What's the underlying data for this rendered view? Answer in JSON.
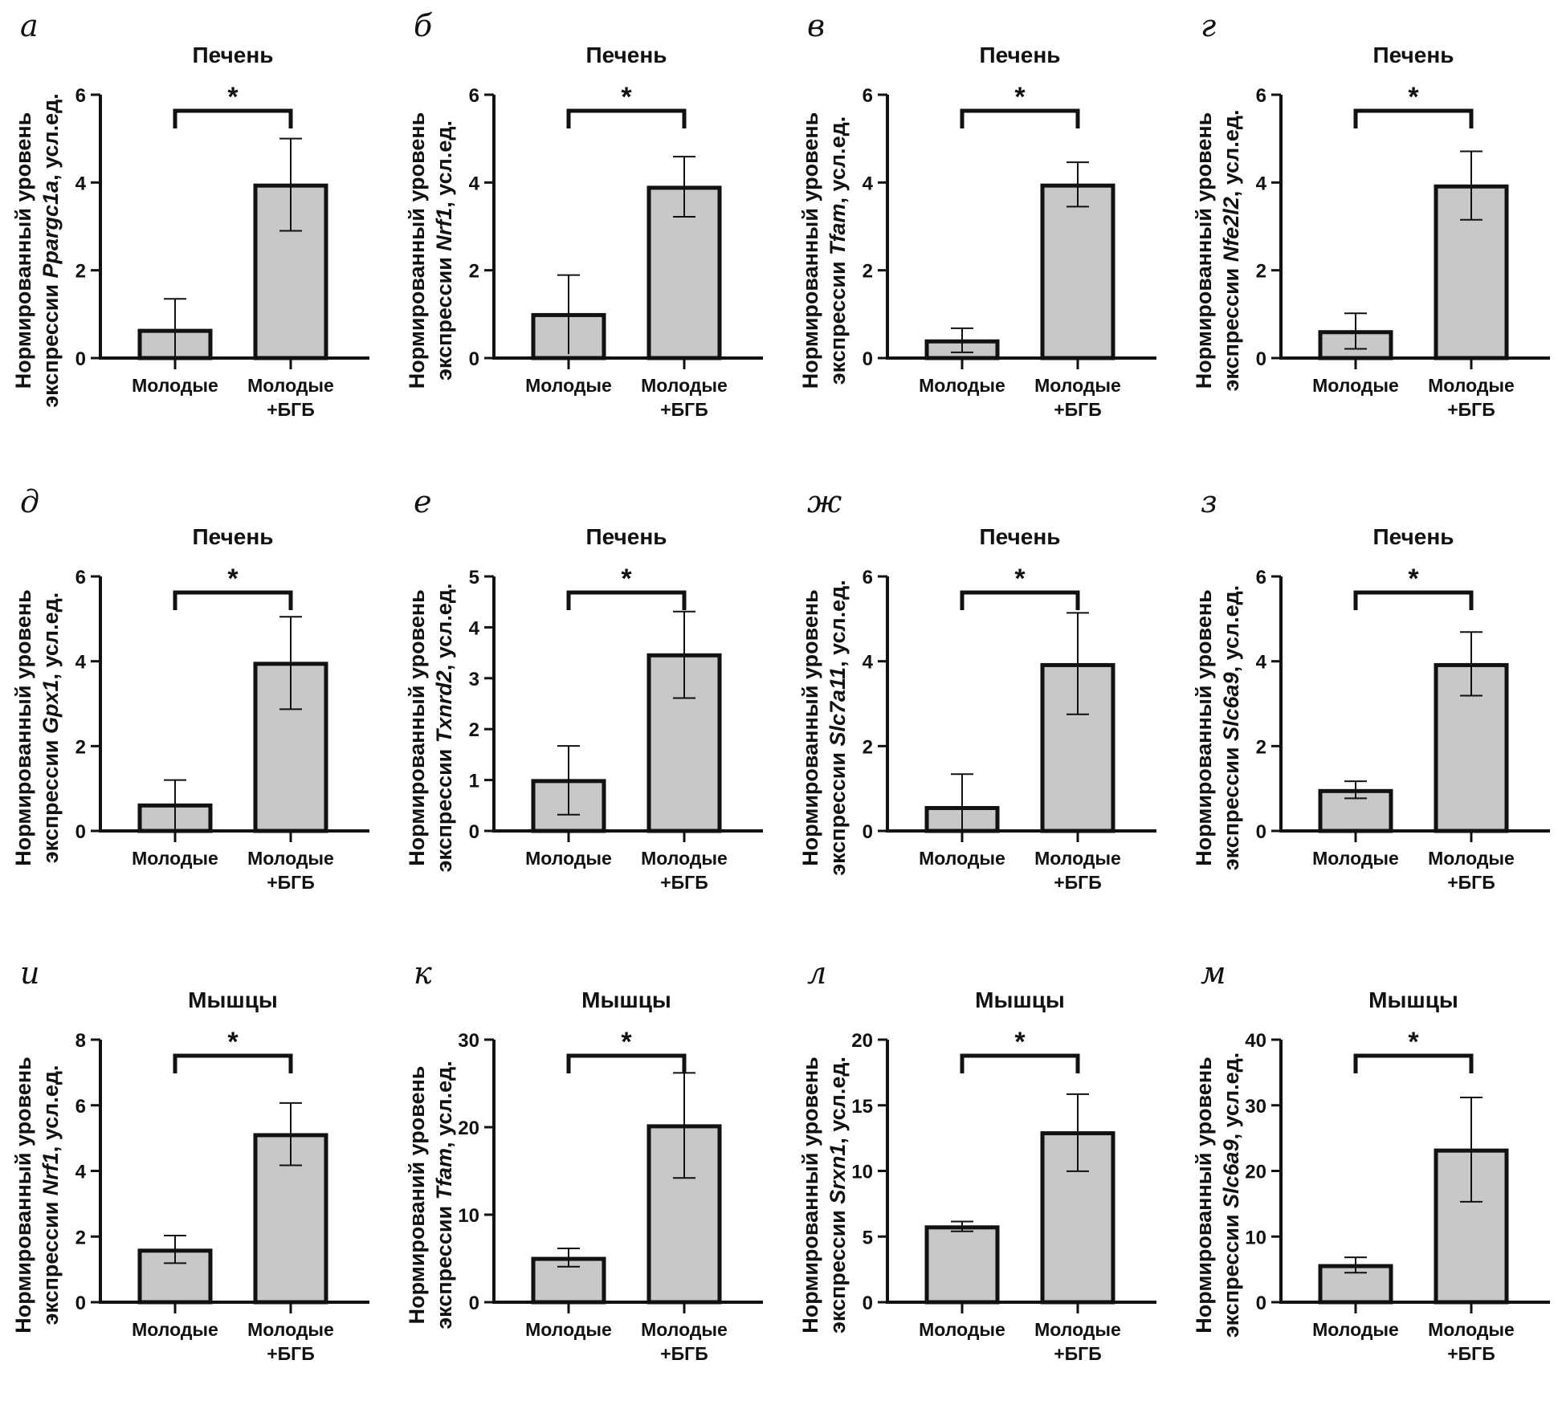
{
  "figure": {
    "category_labels": [
      [
        "Молодые"
      ],
      [
        "Молодые",
        "+БГБ"
      ]
    ],
    "ylabel_line1": "Нормированный уровень",
    "ylabel_prefix": "экспрессии ",
    "ylabel_suffix": ", усл.ед.",
    "significance_marker": "*",
    "colors": {
      "bar_fill": "#c8c8c8",
      "bar_stroke": "#111111",
      "axis": "#111111"
    }
  },
  "chart_data": [
    {
      "type": "bar",
      "panel_label": "а",
      "title": "Печень",
      "gene": "Ppargc1a",
      "ylabel_line1_variant": "Нормированный уровень",
      "categories": [
        "Молодые",
        "Молодые +БГБ"
      ],
      "values": [
        0.62,
        3.93
      ],
      "error_low": [
        0.0,
        2.9
      ],
      "error_high": [
        1.35,
        5.0
      ],
      "ylim": [
        0,
        6
      ],
      "yticks": [
        0,
        2,
        4,
        6
      ],
      "significance": "*"
    },
    {
      "type": "bar",
      "panel_label": "б",
      "title": "Печень",
      "gene": "Nrf1",
      "ylabel_line1_variant": "Нормированный уровень",
      "categories": [
        "Молодые",
        "Молодые +БГБ"
      ],
      "values": [
        0.98,
        3.88
      ],
      "error_low": [
        0.09,
        3.22
      ],
      "error_high": [
        1.89,
        4.59
      ],
      "ylim": [
        0,
        6
      ],
      "yticks": [
        0,
        2,
        4,
        6
      ],
      "significance": "*"
    },
    {
      "type": "bar",
      "panel_label": "в",
      "title": "Печень",
      "gene": "Tfam",
      "ylabel_line1_variant": "Нормированный уровень",
      "categories": [
        "Молодые",
        "Молодые +БГБ"
      ],
      "values": [
        0.38,
        3.93
      ],
      "error_low": [
        0.13,
        3.45
      ],
      "error_high": [
        0.68,
        4.46
      ],
      "ylim": [
        0,
        6
      ],
      "yticks": [
        0,
        2,
        4,
        6
      ],
      "significance": "*"
    },
    {
      "type": "bar",
      "panel_label": "г",
      "title": "Печень",
      "gene": "Nfe2l2",
      "ylabel_line1_variant": "Нормированный уровень",
      "categories": [
        "Молодые",
        "Молодые +БГБ"
      ],
      "values": [
        0.59,
        3.91
      ],
      "error_low": [
        0.21,
        3.15
      ],
      "error_high": [
        1.02,
        4.71
      ],
      "ylim": [
        0,
        6
      ],
      "yticks": [
        0,
        2,
        4,
        6
      ],
      "significance": "*"
    },
    {
      "type": "bar",
      "panel_label": "д",
      "title": "Печень",
      "gene": "Gpx1",
      "ylabel_line1_variant": "Нормированный уровень",
      "categories": [
        "Молодые",
        "Молодые +БГБ"
      ],
      "values": [
        0.6,
        3.94
      ],
      "error_low": [
        0.05,
        2.87
      ],
      "error_high": [
        1.2,
        5.05
      ],
      "ylim": [
        0,
        6
      ],
      "yticks": [
        0,
        2,
        4,
        6
      ],
      "significance": "*"
    },
    {
      "type": "bar",
      "panel_label": "е",
      "title": "Печень",
      "gene": "Txnrd2",
      "ylabel_line1_variant": "Нормированный уровень",
      "categories": [
        "Молодые",
        "Молодые +БГБ"
      ],
      "values": [
        0.98,
        3.45
      ],
      "error_low": [
        0.32,
        2.61
      ],
      "error_high": [
        1.67,
        4.31
      ],
      "ylim": [
        0,
        5
      ],
      "yticks": [
        0,
        1,
        2,
        3,
        4,
        5
      ],
      "significance": "*"
    },
    {
      "type": "bar",
      "panel_label": "ж",
      "title": "Печень",
      "gene": "Slc7a11",
      "ylabel_line1_variant": "Нормированный уровень",
      "categories": [
        "Молодые",
        "Молодые +БГБ"
      ],
      "values": [
        0.54,
        3.91
      ],
      "error_low": [
        0.0,
        2.75
      ],
      "error_high": [
        1.34,
        5.14
      ],
      "ylim": [
        0,
        6
      ],
      "yticks": [
        0,
        2,
        4,
        6
      ],
      "significance": "*"
    },
    {
      "type": "bar",
      "panel_label": "з",
      "title": "Печень",
      "gene": "Slc6a9",
      "ylabel_line1_variant": "Нормированный уровень",
      "categories": [
        "Молодые",
        "Молодые +БГБ"
      ],
      "values": [
        0.94,
        3.91
      ],
      "error_low": [
        0.77,
        3.19
      ],
      "error_high": [
        1.17,
        4.69
      ],
      "ylim": [
        0,
        6
      ],
      "yticks": [
        0,
        2,
        4,
        6
      ],
      "significance": "*"
    },
    {
      "type": "bar",
      "panel_label": "и",
      "title": "Мышцы",
      "gene": "Nrf1",
      "ylabel_line1_variant": "Нормированный уровень",
      "categories": [
        "Молодые",
        "Молодые +БГБ"
      ],
      "values": [
        1.57,
        5.09
      ],
      "error_low": [
        1.19,
        4.17
      ],
      "error_high": [
        2.03,
        6.07
      ],
      "ylim": [
        0,
        8
      ],
      "yticks": [
        0,
        2,
        4,
        6,
        8
      ],
      "significance": "*"
    },
    {
      "type": "bar",
      "panel_label": "к",
      "title": "Мышцы",
      "gene": "Tfam",
      "ylabel_line1_variant": "Нормирований уровень",
      "categories": [
        "Молодые",
        "Молодые +БГБ"
      ],
      "values": [
        4.95,
        20.1
      ],
      "error_low": [
        4.06,
        14.2
      ],
      "error_high": [
        6.15,
        26.2
      ],
      "ylim": [
        0,
        30
      ],
      "yticks": [
        0,
        10,
        20,
        30
      ],
      "significance": "*"
    },
    {
      "type": "bar",
      "panel_label": "л",
      "title": "Мышцы",
      "gene": "Srxn1",
      "ylabel_line1_variant": "Нормированный уровень",
      "categories": [
        "Молодые",
        "Молодые +БГБ"
      ],
      "values": [
        5.7,
        12.87
      ],
      "error_low": [
        5.4,
        9.98
      ],
      "error_high": [
        6.15,
        15.85
      ],
      "ylim": [
        0,
        20
      ],
      "yticks": [
        0,
        5,
        10,
        15,
        20
      ],
      "significance": "*"
    },
    {
      "type": "bar",
      "panel_label": "м",
      "title": "Мышцы",
      "gene": "Slc6a9",
      "ylabel_line1_variant": "Нормированный уровень",
      "categories": [
        "Молодые",
        "Молодые +БГБ"
      ],
      "values": [
        5.5,
        23.1
      ],
      "error_low": [
        4.5,
        15.3
      ],
      "error_high": [
        6.83,
        31.2
      ],
      "ylim": [
        0,
        40
      ],
      "yticks": [
        0,
        10,
        20,
        30,
        40
      ],
      "significance": "*"
    }
  ]
}
